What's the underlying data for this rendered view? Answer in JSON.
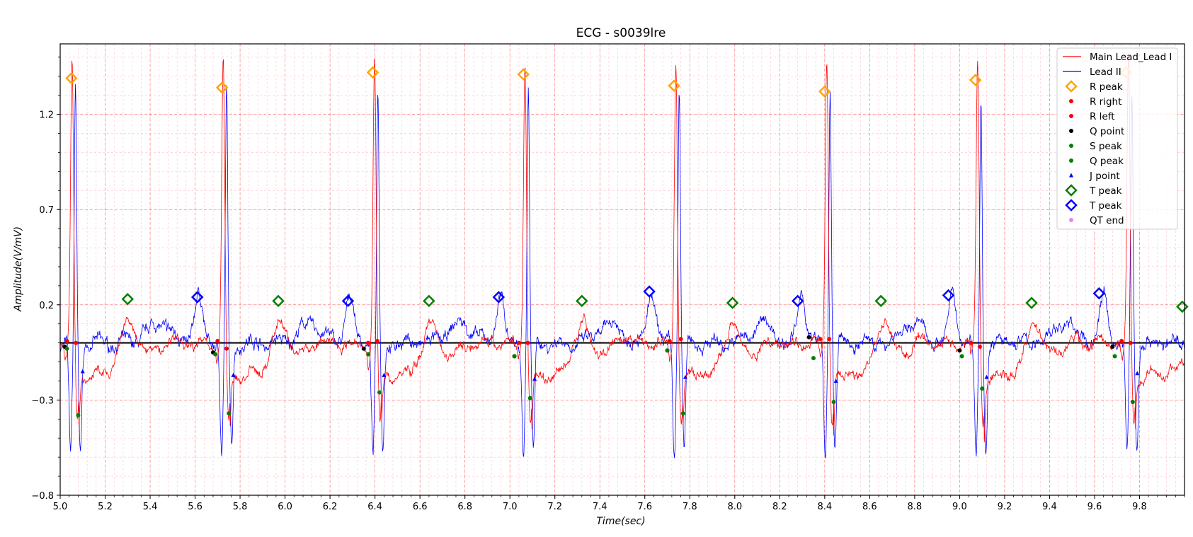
{
  "chart_data": {
    "type": "line",
    "title": "ECG - s0039lre",
    "xlabel": "Time(sec)",
    "ylabel": "Amplitude(V/mV)",
    "xlim": [
      5.0,
      10.0
    ],
    "ylim": [
      -0.8,
      1.57
    ],
    "x_ticks": [
      "5.0",
      "5.2",
      "5.4",
      "5.6",
      "5.8",
      "6.0",
      "6.2",
      "6.4",
      "6.6",
      "6.8",
      "7.0",
      "7.2",
      "7.4",
      "7.6",
      "7.8",
      "8.0",
      "8.2",
      "8.4",
      "8.6",
      "8.8",
      "9.0",
      "9.2",
      "9.4",
      "9.6",
      "9.8"
    ],
    "y_ticks": [
      "1.2",
      "0.7",
      "0.2",
      "−0.3",
      "−0.8"
    ],
    "grid": true,
    "legend_position": "top-right",
    "beat_times": [
      5.053,
      5.725,
      6.398,
      7.067,
      7.738,
      8.409,
      9.08,
      9.751
    ],
    "series": [
      {
        "name": "Main Lead_Lead I",
        "color": "#ff0000",
        "kind": "line"
      },
      {
        "name": "Lead II",
        "color": "#0000ff",
        "kind": "line"
      },
      {
        "name": "R peak",
        "color": "#ffa500",
        "kind": "diamond",
        "points": [
          [
            5.05,
            1.39
          ],
          [
            5.72,
            1.34
          ],
          [
            6.39,
            1.42
          ],
          [
            7.06,
            1.41
          ],
          [
            7.73,
            1.35
          ],
          [
            8.4,
            1.32
          ],
          [
            9.07,
            1.38
          ],
          [
            9.74,
            1.42
          ]
        ]
      },
      {
        "name": "R right",
        "color": "#ff0000",
        "kind": "dot",
        "points": [
          [
            5.07,
            0.0
          ],
          [
            5.74,
            -0.03
          ],
          [
            6.41,
            0.01
          ],
          [
            7.08,
            0.0
          ],
          [
            7.76,
            0.02
          ],
          [
            8.42,
            0.02
          ],
          [
            9.09,
            -0.02
          ],
          [
            9.76,
            0.0
          ]
        ]
      },
      {
        "name": "R left",
        "color": "#ff0000",
        "kind": "dot",
        "points": [
          [
            5.03,
            0.01
          ],
          [
            5.7,
            0.01
          ],
          [
            6.37,
            0.0
          ],
          [
            7.04,
            0.0
          ],
          [
            7.71,
            0.01
          ],
          [
            8.38,
            0.02
          ],
          [
            9.05,
            0.0
          ],
          [
            9.72,
            0.01
          ]
        ]
      },
      {
        "name": "Q point",
        "color": "#000000",
        "kind": "dot",
        "points": [
          [
            5.02,
            -0.02
          ],
          [
            5.68,
            -0.05
          ],
          [
            6.35,
            -0.03
          ],
          [
            7.02,
            -0.07
          ],
          [
            7.7,
            -0.04
          ],
          [
            8.33,
            0.03
          ],
          [
            9.0,
            -0.04
          ],
          [
            9.68,
            -0.02
          ]
        ]
      },
      {
        "name": "S peak",
        "color": "#008000",
        "kind": "dot",
        "points": [
          [
            5.08,
            -0.38
          ],
          [
            5.75,
            -0.37
          ],
          [
            6.42,
            -0.26
          ],
          [
            7.09,
            -0.29
          ],
          [
            7.77,
            -0.37
          ],
          [
            8.44,
            -0.31
          ],
          [
            9.1,
            -0.24
          ],
          [
            9.77,
            -0.31
          ]
        ]
      },
      {
        "name": "Q peak",
        "color": "#008000",
        "kind": "dot",
        "points": [
          [
            5.03,
            -0.03
          ],
          [
            5.69,
            -0.06
          ],
          [
            6.37,
            -0.06
          ],
          [
            7.02,
            -0.07
          ],
          [
            7.7,
            -0.04
          ],
          [
            8.35,
            -0.08
          ],
          [
            9.01,
            -0.07
          ],
          [
            9.69,
            -0.07
          ]
        ]
      },
      {
        "name": "J point",
        "color": "#0000ff",
        "kind": "triangle",
        "points": [
          [
            5.1,
            -0.15
          ],
          [
            5.77,
            -0.17
          ],
          [
            6.44,
            -0.17
          ],
          [
            7.11,
            -0.19
          ],
          [
            7.78,
            -0.18
          ],
          [
            8.45,
            -0.2
          ],
          [
            9.12,
            -0.18
          ],
          [
            9.79,
            -0.16
          ]
        ]
      },
      {
        "name": "T peak",
        "color": "#008000",
        "kind": "diamond",
        "points": [
          [
            5.3,
            0.23
          ],
          [
            5.97,
            0.22
          ],
          [
            6.64,
            0.22
          ],
          [
            7.32,
            0.22
          ],
          [
            7.99,
            0.21
          ],
          [
            8.65,
            0.22
          ],
          [
            9.32,
            0.21
          ],
          [
            9.99,
            0.19
          ]
        ]
      },
      {
        "name": "T peak",
        "color": "#0000ff",
        "kind": "diamond",
        "points": [
          [
            5.61,
            0.24
          ],
          [
            6.28,
            0.22
          ],
          [
            6.95,
            0.24
          ],
          [
            7.62,
            0.27
          ],
          [
            8.28,
            0.22
          ],
          [
            8.95,
            0.25
          ],
          [
            9.62,
            0.26
          ]
        ]
      },
      {
        "name": "QT end",
        "color": "#ee82ee",
        "kind": "dot",
        "points": []
      }
    ]
  }
}
